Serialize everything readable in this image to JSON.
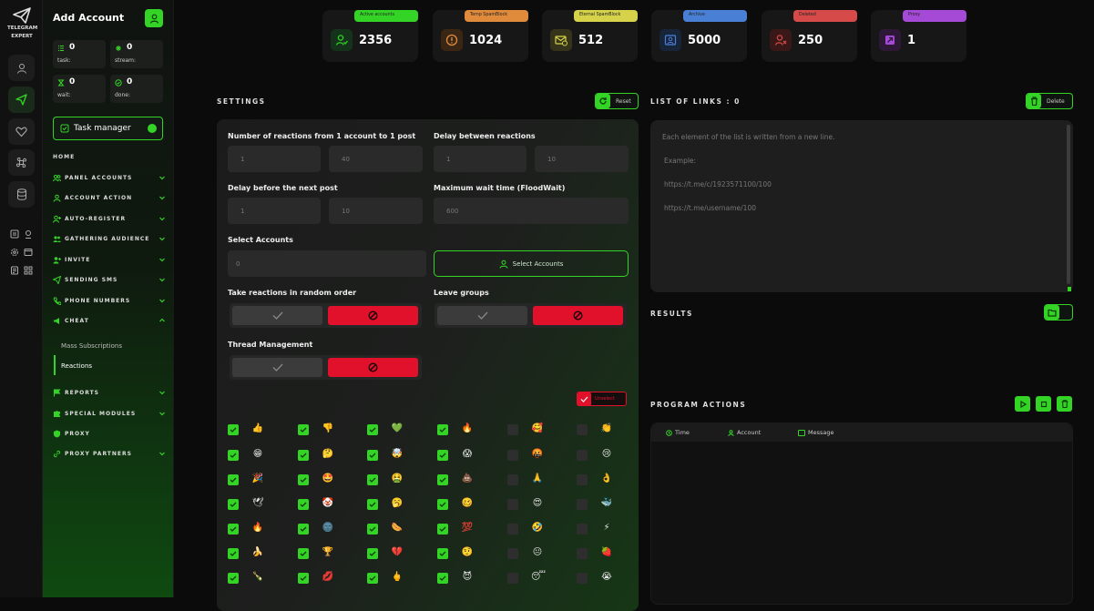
{
  "rail": {
    "brand_line1": "TELEGRAM",
    "brand_line2": "EXPERT",
    "icons": [
      "user-icon",
      "send-icon",
      "heart-icon",
      "command-icon",
      "database-icon"
    ]
  },
  "sidebar": {
    "title": "Add Account",
    "stats": [
      {
        "value": "0",
        "label": "task:"
      },
      {
        "value": "0",
        "label": "stream:"
      },
      {
        "value": "0",
        "label": "wait:"
      },
      {
        "value": "0",
        "label": "done:"
      }
    ],
    "task_manager": "Task manager",
    "home": "HOME",
    "menu": [
      {
        "label": "PANEL ACCOUNTS",
        "icon": "users-icon"
      },
      {
        "label": "ACCOUNT ACTION",
        "icon": "user-icon"
      },
      {
        "label": "AUTO-REGISTER",
        "icon": "user-plus-icon"
      },
      {
        "label": "GATHERING AUDIENCE",
        "icon": "users-icon"
      },
      {
        "label": "INVITE",
        "icon": "user-plus-icon"
      },
      {
        "label": "SENDING SMS",
        "icon": "send-icon"
      },
      {
        "label": "PHONE NUMBERS",
        "icon": "phone-icon"
      },
      {
        "label": "CHEAT",
        "icon": "megaphone-icon"
      }
    ],
    "cheat_sub": [
      "Mass Subscriptions",
      "Reactions"
    ],
    "menu2": [
      {
        "label": "REPORTS",
        "icon": "flag-icon"
      },
      {
        "label": "SPECIAL MODULES",
        "icon": "puzzle-icon"
      },
      {
        "label": "PROXY",
        "icon": "shield-icon"
      },
      {
        "label": "PROXY PARTNERS",
        "icon": "link-icon"
      }
    ]
  },
  "kpis": [
    {
      "tag": "Active accounts",
      "value": "2356",
      "color": "#34d427"
    },
    {
      "tag": "Temp SpamBlock",
      "value": "1024",
      "color": "#e08a3c"
    },
    {
      "tag": "Eternal SpamBlock",
      "value": "512",
      "color": "#d6d24a"
    },
    {
      "tag": "Archive",
      "value": "5000",
      "color": "#4a7fd6"
    },
    {
      "tag": "Deleted",
      "value": "250",
      "color": "#d64a4a"
    },
    {
      "tag": "Proxy",
      "value": "1",
      "color": "#a44ad6"
    }
  ],
  "settings": {
    "title": "SETTINGS",
    "reset": "Reset",
    "reactions_label": "Number of reactions from 1 account to 1 post",
    "reactions_min": "1",
    "reactions_max": "40",
    "delay_label": "Delay between reactions",
    "delay_min": "1",
    "delay_max": "10",
    "next_post_label": "Delay before the next post",
    "next_post_min": "1",
    "next_post_max": "10",
    "floodwait_label": "Maximum wait time (FloodWait)",
    "floodwait_value": "600",
    "select_accounts_label": "Select Accounts",
    "select_accounts_value": "0",
    "select_accounts_button": "Select Accounts",
    "random_order_label": "Take reactions in random order",
    "leave_groups_label": "Leave groups",
    "thread_label": "Thread Management",
    "unselect": "Unselect"
  },
  "reactions_grid": {
    "col_checked": [
      true,
      true,
      true,
      true,
      false,
      false
    ],
    "rows": [
      [
        "👍",
        "👎",
        "💚",
        "🔥",
        "🥰",
        "👏"
      ],
      [
        "😁",
        "🤔",
        "🤯",
        "😱",
        "🤬",
        "😢"
      ],
      [
        "🎉",
        "🤩",
        "🤮",
        "💩",
        "🙏",
        "👌"
      ],
      [
        "🕊",
        "🤡",
        "🥱",
        "🥴",
        "😍",
        "🐳"
      ],
      [
        "🔥",
        "🌚",
        "🌭",
        "💯",
        "🤣",
        "⚡"
      ],
      [
        "🍌",
        "🏆",
        "💔",
        "🤨",
        "😐",
        "🍓"
      ],
      [
        "🍾",
        "💋",
        "🖕",
        "😈",
        "😴",
        "😭"
      ]
    ]
  },
  "links": {
    "title": "LIST OF LINKS : 0",
    "delete": "Delete",
    "hint": "Each element of the list is written from a new line.",
    "example_label": "Example:",
    "example1": "https://t.me/c/1923571100/100",
    "example2": "https://t.me/username/100"
  },
  "results": {
    "title": "RESULTS"
  },
  "program_actions": {
    "title": "PROGRAM ACTIONS",
    "columns": [
      "Time",
      "Account",
      "Message"
    ]
  },
  "colors": {
    "accent": "#34d427",
    "danger": "#e1112b"
  }
}
